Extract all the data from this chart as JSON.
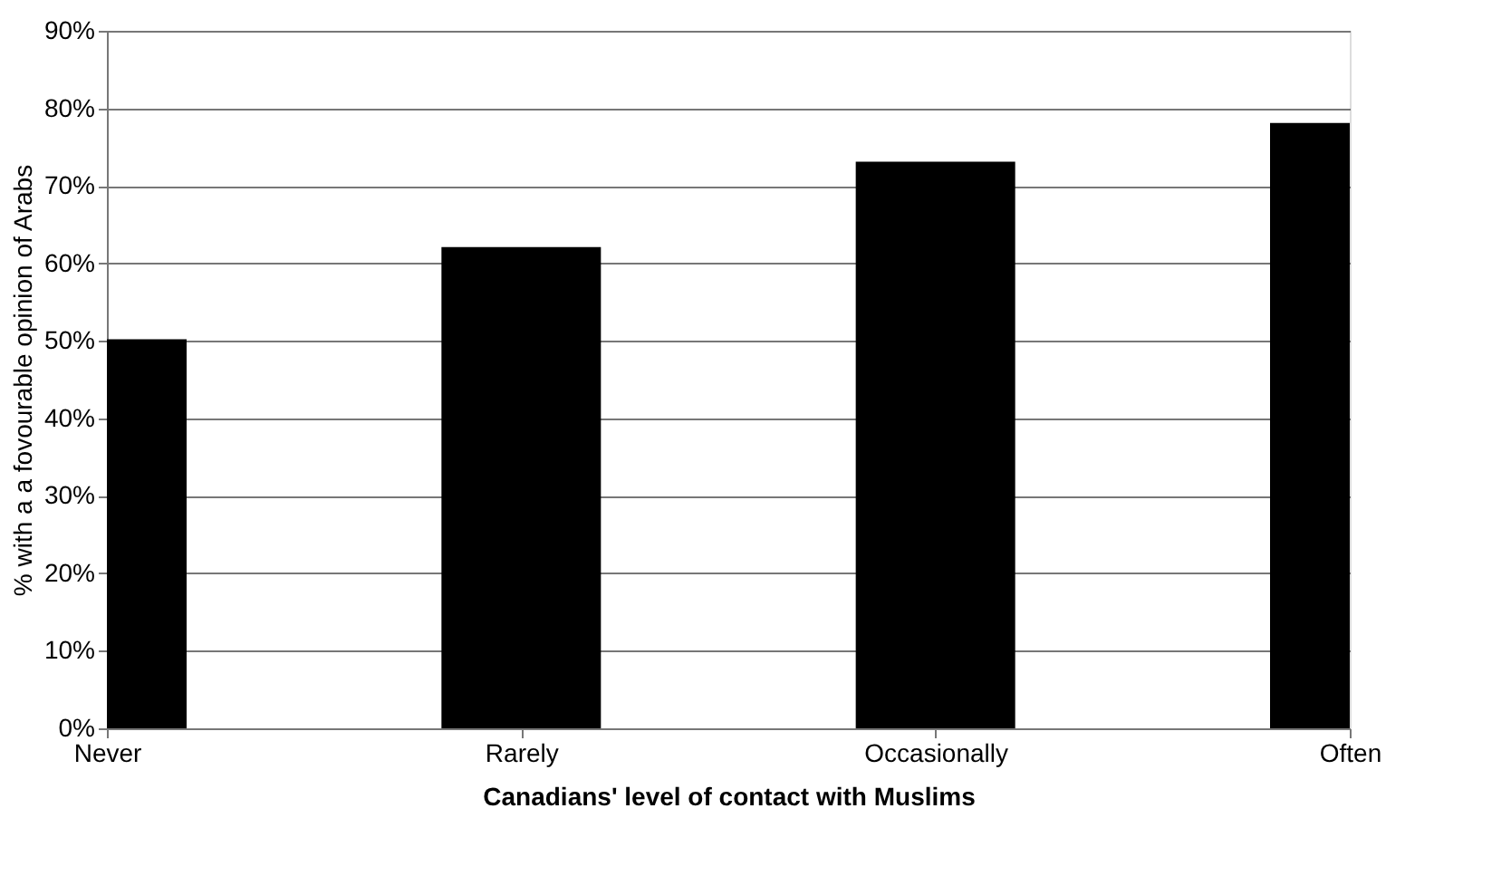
{
  "chart_data": {
    "type": "bar",
    "xlabel": "Canadians' level of contact with Muslims",
    "ylabel": "% with a a fovourable opinion of Arabs",
    "categories": [
      "Never",
      "Rarely",
      "Occasionally",
      "Often"
    ],
    "values": [
      50.2,
      62.1,
      73.1,
      78.1
    ],
    "color": "#000000",
    "ylim": [
      0,
      90
    ],
    "yticks": [
      {
        "value": 0,
        "label": "0%"
      },
      {
        "value": 10,
        "label": "10%"
      },
      {
        "value": 20,
        "label": "20%"
      },
      {
        "value": 30,
        "label": "30%"
      },
      {
        "value": 40,
        "label": "40%"
      },
      {
        "value": 50,
        "label": "50%"
      },
      {
        "value": 60,
        "label": "60%"
      },
      {
        "value": 70,
        "label": "70%"
      },
      {
        "value": 80,
        "label": "80%"
      },
      {
        "value": 90,
        "label": "90%"
      }
    ],
    "grid": "y"
  }
}
